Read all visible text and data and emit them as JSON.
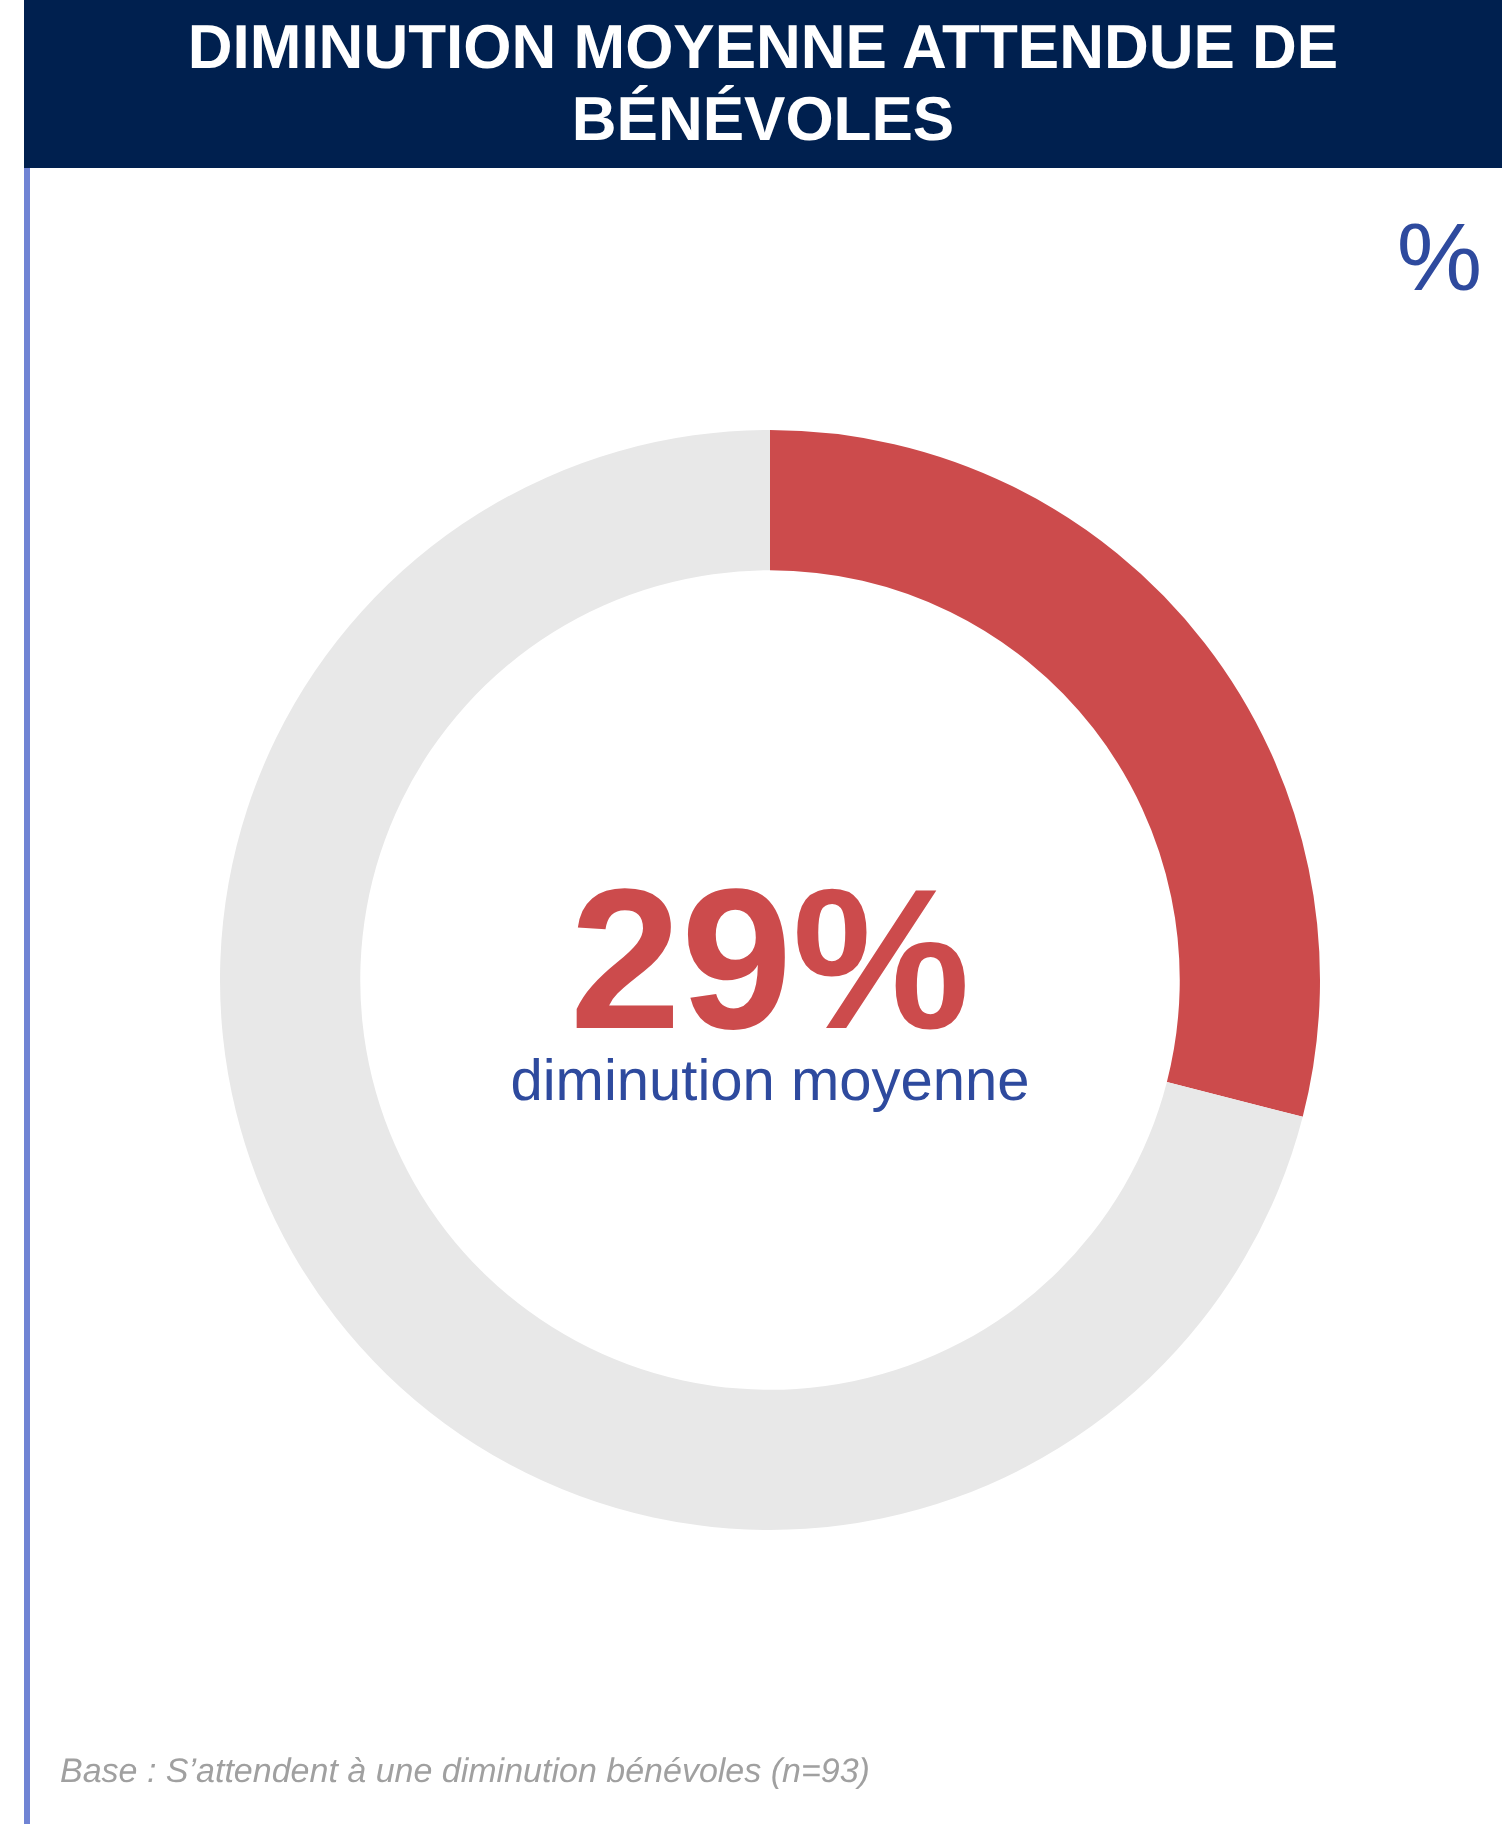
{
  "chart_data": {
    "type": "donut",
    "title": "DIMINUTION MOYENNE ATTENDUE DE BÉNÉVOLES",
    "subtitle": "diminution moyenne",
    "categories": [
      null,
      null
    ],
    "values": [
      29,
      71
    ],
    "colors": [
      "#cc4b4c",
      "#e8e8e8"
    ],
    "value_labels": [
      "29%",
      null
    ],
    "annotations": [
      "%",
      "Base : S’attendent à une diminution bénévoles (n=93)"
    ]
  }
}
